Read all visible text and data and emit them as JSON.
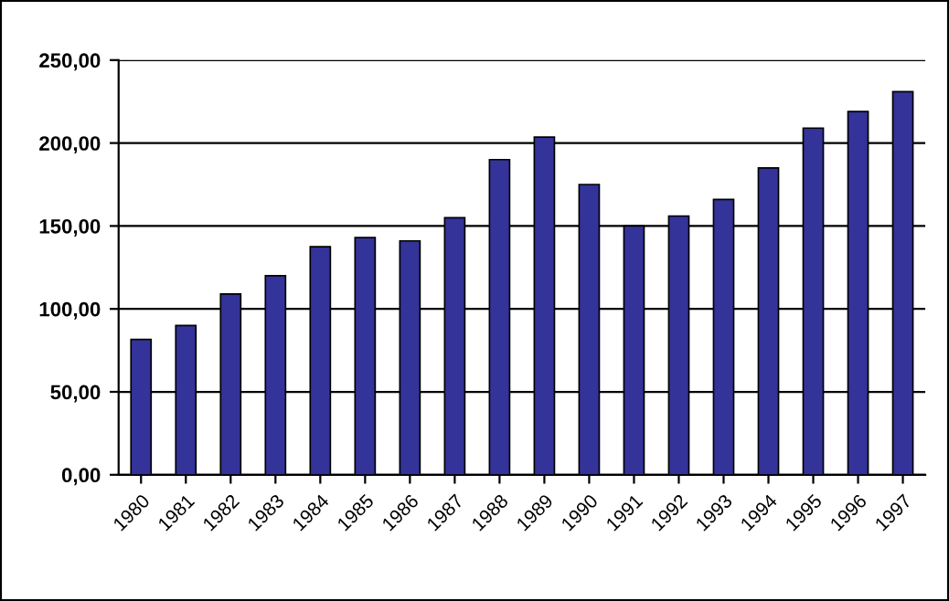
{
  "chart_data": {
    "type": "bar",
    "categories": [
      "1980",
      "1981",
      "1982",
      "1983",
      "1984",
      "1985",
      "1986",
      "1987",
      "1988",
      "1989",
      "1990",
      "1991",
      "1992",
      "1993",
      "1994",
      "1995",
      "1996",
      "1997"
    ],
    "values": [
      81.6,
      90,
      109,
      120,
      137.5,
      143,
      141,
      155,
      190,
      203.6,
      175,
      150,
      156,
      166,
      185,
      209,
      219,
      231
    ],
    "color": "#333399",
    "ylim": [
      0,
      250
    ],
    "yticks": [
      {
        "value": 0,
        "label": "0,00"
      },
      {
        "value": 50,
        "label": "50,00"
      },
      {
        "value": 100,
        "label": "100,00"
      },
      {
        "value": 150,
        "label": "150,00"
      },
      {
        "value": 200,
        "label": "200,00"
      },
      {
        "value": 250,
        "label": "250,00"
      }
    ],
    "grid": "y",
    "legend": false
  }
}
